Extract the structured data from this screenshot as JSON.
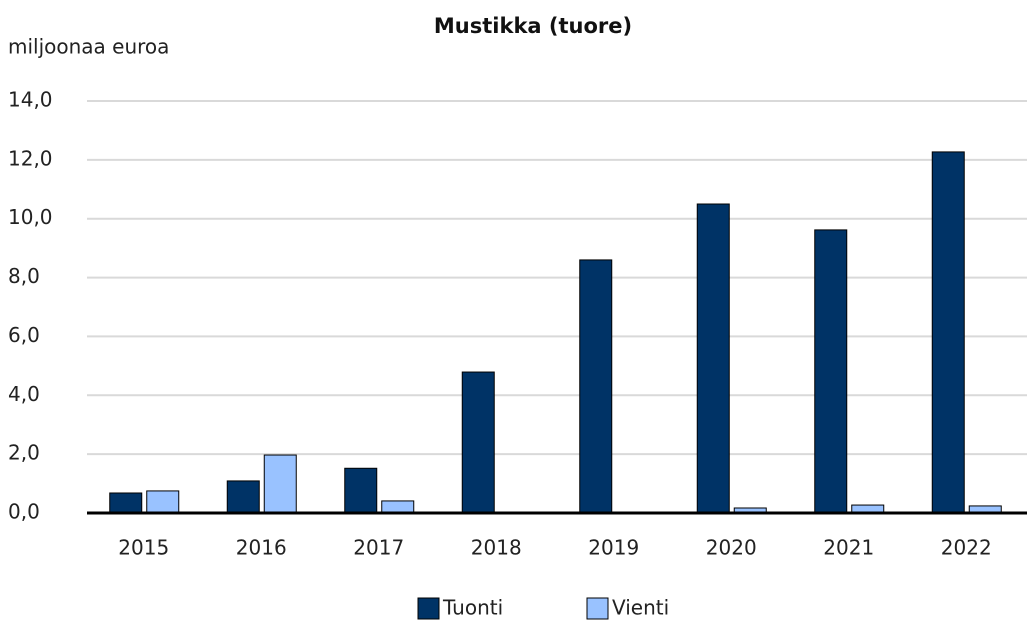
{
  "chart_data": {
    "type": "bar",
    "title": "Mustikka (tuore)",
    "y_label": "miljoonaa euroa",
    "categories": [
      "2015",
      "2016",
      "2017",
      "2018",
      "2019",
      "2020",
      "2021",
      "2022"
    ],
    "series": [
      {
        "name": "Tuonti",
        "color": "#003366",
        "values": [
          0.68,
          1.09,
          1.52,
          4.79,
          8.6,
          10.5,
          9.62,
          12.27
        ]
      },
      {
        "name": "Vienti",
        "color": "#99c2ff",
        "values": [
          0.75,
          1.97,
          0.41,
          0,
          0,
          0.17,
          0.27,
          0.24
        ]
      }
    ],
    "ylim": [
      0,
      14
    ],
    "yticks": [
      {
        "value": 0,
        "label": "0,0"
      },
      {
        "value": 2,
        "label": "2,0"
      },
      {
        "value": 4,
        "label": "4,0"
      },
      {
        "value": 6,
        "label": "6,0"
      },
      {
        "value": 8,
        "label": "8,0"
      },
      {
        "value": 10,
        "label": "10,0"
      },
      {
        "value": 12,
        "label": "12,0"
      },
      {
        "value": 14,
        "label": "14,0"
      }
    ],
    "grid": true,
    "legend": "bottom"
  }
}
